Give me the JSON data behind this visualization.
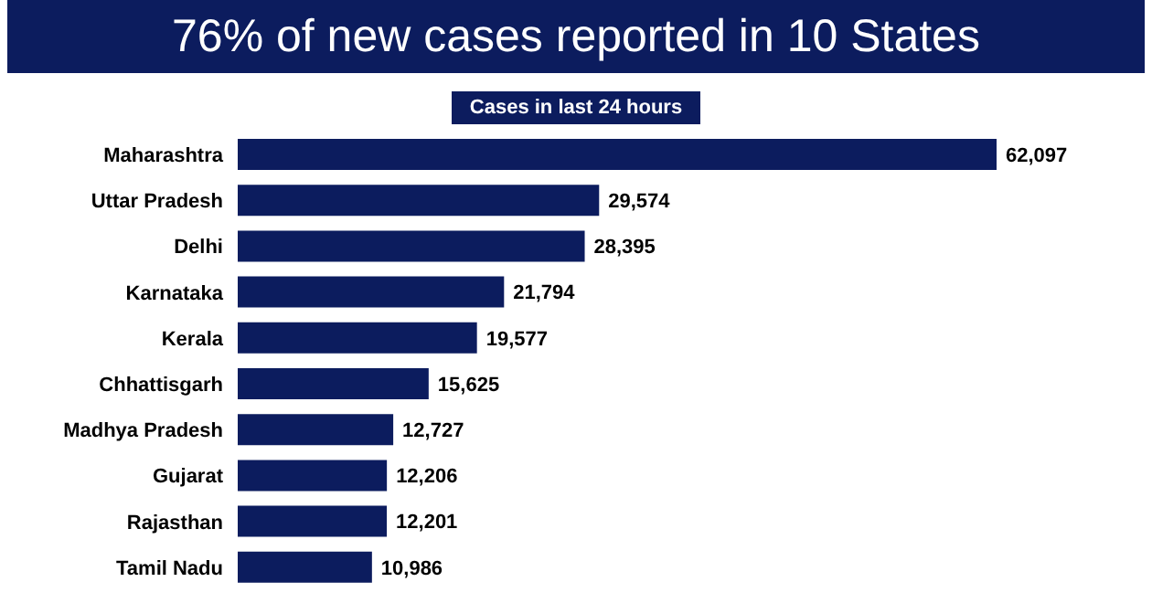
{
  "chart_data": {
    "type": "bar",
    "orientation": "horizontal",
    "title": "76% of new cases reported in 10 States",
    "subtitle": "Cases in last 24 hours",
    "categories": [
      "Maharashtra",
      "Uttar Pradesh",
      "Delhi",
      "Karnataka",
      "Kerala",
      "Chhattisgarh",
      "Madhya Pradesh",
      "Gujarat",
      "Rajasthan",
      "Tamil Nadu"
    ],
    "values": [
      62097,
      29574,
      28395,
      21794,
      19577,
      15625,
      12727,
      12206,
      12201,
      10986
    ],
    "value_labels": [
      "62,097",
      "29,574",
      "28,395",
      "21,794",
      "19,577",
      "15,625",
      "12,727",
      "12,206",
      "12,201",
      "10,986"
    ],
    "color": "#0c1c5e",
    "grid": false,
    "legend": false
  }
}
